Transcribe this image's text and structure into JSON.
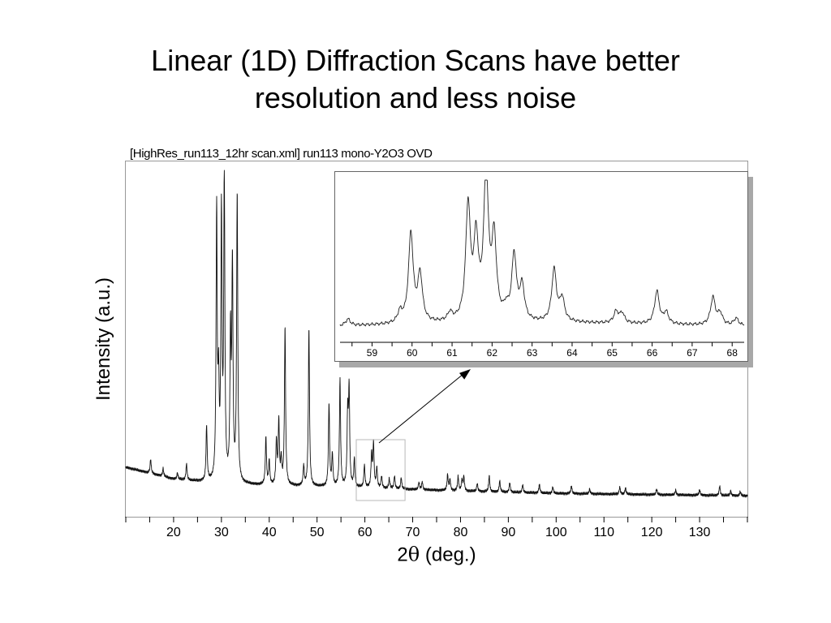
{
  "slide": {
    "title_line1": "Linear (1D) Diffraction Scans have better",
    "title_line2": "resolution and less noise"
  },
  "chart_data": [
    {
      "type": "line",
      "title": "[HighRes_run113_12hr scan.xml] run113 mono-Y2O3 OVD",
      "xlabel_prefix": "2",
      "xlabel_symbol": "θ",
      "xlabel_suffix": " (deg.)",
      "ylabel": "Intensity (a.u.)",
      "xlim": [
        10,
        140
      ],
      "ylim": [
        0,
        420
      ],
      "xticks_labeled": [
        20,
        30,
        40,
        50,
        60,
        70,
        80,
        90,
        100,
        110,
        120,
        130
      ],
      "grid": false,
      "legend": "none",
      "baseline": {
        "x": [
          10,
          20,
          30,
          40,
          60,
          80,
          100,
          140
        ],
        "y": [
          45,
          30,
          24,
          22,
          19,
          15,
          12,
          9
        ]
      },
      "peaks": [
        [
          15.2,
          18
        ],
        [
          17.8,
          10
        ],
        [
          20.8,
          8
        ],
        [
          22.7,
          20
        ],
        [
          26.9,
          70
        ],
        [
          29.0,
          340
        ],
        [
          29.4,
          110
        ],
        [
          30.0,
          330
        ],
        [
          30.6,
          380
        ],
        [
          31.9,
          180
        ],
        [
          32.3,
          270
        ],
        [
          33.3,
          365
        ],
        [
          39.3,
          60
        ],
        [
          40.0,
          30
        ],
        [
          41.5,
          55
        ],
        [
          42.0,
          80
        ],
        [
          42.5,
          30
        ],
        [
          43.3,
          200
        ],
        [
          47.2,
          25
        ],
        [
          48.3,
          200
        ],
        [
          52.5,
          105
        ],
        [
          53.2,
          40
        ],
        [
          54.8,
          135
        ],
        [
          56.4,
          90
        ],
        [
          56.7,
          120
        ],
        [
          57.8,
          35
        ],
        [
          59.9,
          28
        ],
        [
          61.4,
          42
        ],
        [
          61.8,
          55
        ],
        [
          62.5,
          25
        ],
        [
          63.5,
          15
        ],
        [
          65.1,
          12
        ],
        [
          66.2,
          16
        ],
        [
          67.6,
          14
        ],
        [
          71.3,
          9
        ],
        [
          72.0,
          10
        ],
        [
          77.3,
          20
        ],
        [
          77.8,
          14
        ],
        [
          79.5,
          18
        ],
        [
          80.3,
          14
        ],
        [
          80.7,
          18
        ],
        [
          83.5,
          10
        ],
        [
          86.0,
          20
        ],
        [
          88.2,
          14
        ],
        [
          90.3,
          12
        ],
        [
          93.0,
          10
        ],
        [
          96.5,
          11
        ],
        [
          99.3,
          8
        ],
        [
          103.2,
          10
        ],
        [
          107.0,
          6
        ],
        [
          113.3,
          9
        ],
        [
          114.5,
          8
        ],
        [
          121.0,
          7
        ],
        [
          125.0,
          6
        ],
        [
          130.0,
          7
        ],
        [
          134.2,
          12
        ],
        [
          136.5,
          6
        ],
        [
          138.5,
          5
        ]
      ],
      "zoom_box_x": [
        58.2,
        68.4
      ]
    },
    {
      "type": "line",
      "title": "",
      "xlim": [
        58.2,
        68.3
      ],
      "ylim": [
        0,
        190
      ],
      "xticks_labeled": [
        59,
        60,
        61,
        62,
        63,
        64,
        65,
        66,
        67,
        68
      ],
      "grid": false,
      "legend": "none",
      "baseline": {
        "x": [
          58.2,
          61,
          64,
          68.3
        ],
        "y": [
          10,
          13,
          14,
          10
        ]
      },
      "peaks": [
        [
          58.4,
          8
        ],
        [
          59.7,
          13
        ],
        [
          59.97,
          110
        ],
        [
          60.2,
          58
        ],
        [
          60.95,
          10
        ],
        [
          61.4,
          140
        ],
        [
          61.6,
          95
        ],
        [
          61.85,
          180
        ],
        [
          62.05,
          98
        ],
        [
          62.35,
          12
        ],
        [
          62.55,
          80
        ],
        [
          62.75,
          42
        ],
        [
          63.55,
          64
        ],
        [
          63.75,
          28
        ],
        [
          65.1,
          14
        ],
        [
          65.25,
          12
        ],
        [
          66.12,
          40
        ],
        [
          66.35,
          14
        ],
        [
          67.52,
          34
        ],
        [
          67.7,
          14
        ],
        [
          68.1,
          9
        ]
      ]
    }
  ]
}
